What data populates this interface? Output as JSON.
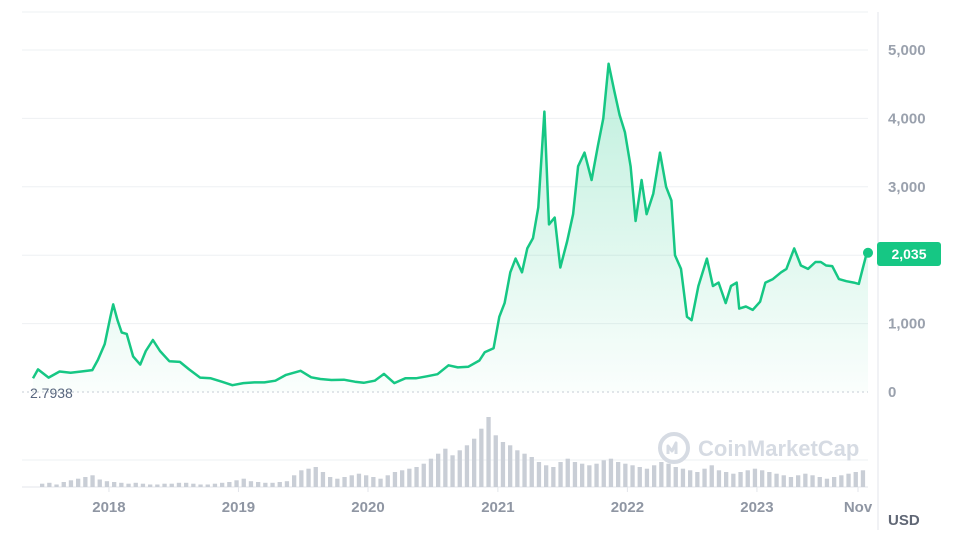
{
  "chart_data": {
    "type": "area",
    "ylabel_unit": "USD",
    "ylim": [
      0,
      5400
    ],
    "yticks": [
      0,
      1000,
      2000,
      3000,
      4000,
      5000
    ],
    "ytick_labels": [
      "0",
      "1,000",
      "",
      "3,000",
      "4,000",
      "5,000"
    ],
    "xlim": [
      "2017-05-01",
      "2023-11-10"
    ],
    "xticks": [
      {
        "date": "2018-01-01",
        "label": "2018"
      },
      {
        "date": "2019-01-01",
        "label": "2019"
      },
      {
        "date": "2020-01-01",
        "label": "2020"
      },
      {
        "date": "2021-01-01",
        "label": "2021"
      },
      {
        "date": "2022-01-01",
        "label": "2022"
      },
      {
        "date": "2023-01-01",
        "label": "2023"
      },
      {
        "date": "2023-11-01",
        "label": "Nov"
      }
    ],
    "min_label": "2.7938",
    "current_label": "2,035",
    "current_value": 2035,
    "watermark": "CoinMarketCap",
    "grid": true,
    "line_color": "#16c784",
    "series": [
      {
        "x": [
          "2017-06-01",
          "2017-06-15",
          "2017-07-15",
          "2017-08-15",
          "2017-09-15",
          "2017-10-15",
          "2017-11-15",
          "2017-12-01",
          "2017-12-20",
          "2018-01-05",
          "2018-01-13",
          "2018-01-25",
          "2018-02-06",
          "2018-02-20",
          "2018-03-10",
          "2018-03-30",
          "2018-04-15",
          "2018-05-05",
          "2018-05-25",
          "2018-06-20",
          "2018-07-20",
          "2018-08-15",
          "2018-09-15",
          "2018-10-15",
          "2018-11-15",
          "2018-12-15",
          "2019-01-15",
          "2019-02-15",
          "2019-03-15",
          "2019-04-15",
          "2019-05-15",
          "2019-06-25",
          "2019-07-25",
          "2019-08-20",
          "2019-09-20",
          "2019-10-25",
          "2019-11-25",
          "2019-12-20",
          "2020-01-20",
          "2020-02-15",
          "2020-03-15",
          "2020-04-15",
          "2020-05-15",
          "2020-06-15",
          "2020-07-15",
          "2020-08-15",
          "2020-09-10",
          "2020-10-10",
          "2020-11-10",
          "2020-11-25",
          "2020-12-20",
          "2021-01-05",
          "2021-01-20",
          "2021-02-05",
          "2021-02-20",
          "2021-03-10",
          "2021-03-25",
          "2021-04-10",
          "2021-04-25",
          "2021-05-12",
          "2021-05-25",
          "2021-06-10",
          "2021-06-26",
          "2021-07-15",
          "2021-08-01",
          "2021-08-15",
          "2021-09-02",
          "2021-09-22",
          "2021-10-10",
          "2021-10-25",
          "2021-11-09",
          "2021-11-25",
          "2021-12-10",
          "2021-12-25",
          "2022-01-10",
          "2022-01-24",
          "2022-02-10",
          "2022-02-24",
          "2022-03-15",
          "2022-04-03",
          "2022-04-20",
          "2022-05-05",
          "2022-05-15",
          "2022-06-01",
          "2022-06-18",
          "2022-07-01",
          "2022-07-20",
          "2022-08-13",
          "2022-08-30",
          "2022-09-15",
          "2022-10-05",
          "2022-10-20",
          "2022-11-05",
          "2022-11-12",
          "2022-12-01",
          "2022-12-20",
          "2023-01-10",
          "2023-01-25",
          "2023-02-15",
          "2023-03-10",
          "2023-03-25",
          "2023-04-16",
          "2023-05-05",
          "2023-05-25",
          "2023-06-15",
          "2023-06-30",
          "2023-07-15",
          "2023-08-01",
          "2023-08-20",
          "2023-09-10",
          "2023-10-01",
          "2023-10-15",
          "2023-10-25",
          "2023-11-05",
          "2023-11-10"
        ],
        "y": [
          200,
          330,
          210,
          300,
          280,
          300,
          320,
          470,
          700,
          1100,
          1280,
          1050,
          870,
          850,
          520,
          400,
          600,
          760,
          600,
          450,
          440,
          330,
          210,
          200,
          150,
          100,
          130,
          140,
          140,
          165,
          250,
          310,
          215,
          190,
          175,
          180,
          150,
          135,
          165,
          265,
          130,
          200,
          200,
          230,
          260,
          390,
          360,
          370,
          460,
          580,
          640,
          1100,
          1300,
          1750,
          1950,
          1750,
          2100,
          2250,
          2700,
          4100,
          2450,
          2550,
          1820,
          2200,
          2600,
          3300,
          3500,
          3100,
          3600,
          4000,
          4800,
          4400,
          4050,
          3800,
          3300,
          2500,
          3100,
          2600,
          2900,
          3500,
          3000,
          2800,
          2000,
          1800,
          1100,
          1050,
          1550,
          1950,
          1550,
          1600,
          1300,
          1550,
          1600,
          1220,
          1250,
          1200,
          1320,
          1600,
          1650,
          1750,
          1800,
          2100,
          1850,
          1800,
          1900,
          1900,
          1850,
          1840,
          1650,
          1620,
          1600,
          1580,
          1780,
          2000,
          2035
        ]
      }
    ],
    "volume": [
      4,
      5,
      3,
      6,
      8,
      10,
      12,
      14,
      9,
      7,
      6,
      5,
      4,
      5,
      4,
      3,
      3,
      4,
      4,
      5,
      5,
      4,
      3,
      3,
      4,
      5,
      6,
      8,
      10,
      7,
      6,
      5,
      5,
      6,
      7,
      14,
      20,
      22,
      24,
      18,
      12,
      10,
      12,
      14,
      16,
      14,
      12,
      10,
      14,
      18,
      20,
      22,
      24,
      28,
      34,
      40,
      46,
      38,
      44,
      50,
      58,
      70,
      84,
      62,
      54,
      50,
      44,
      40,
      36,
      30,
      26,
      24,
      30,
      34,
      30,
      28,
      26,
      28,
      32,
      34,
      30,
      28,
      26,
      24,
      22,
      26,
      30,
      28,
      24,
      22,
      20,
      18,
      22,
      26,
      20,
      18,
      16,
      18,
      20,
      22,
      20,
      18,
      16,
      14,
      12,
      14,
      16,
      14,
      12,
      10,
      12,
      14,
      16,
      18,
      20
    ]
  }
}
